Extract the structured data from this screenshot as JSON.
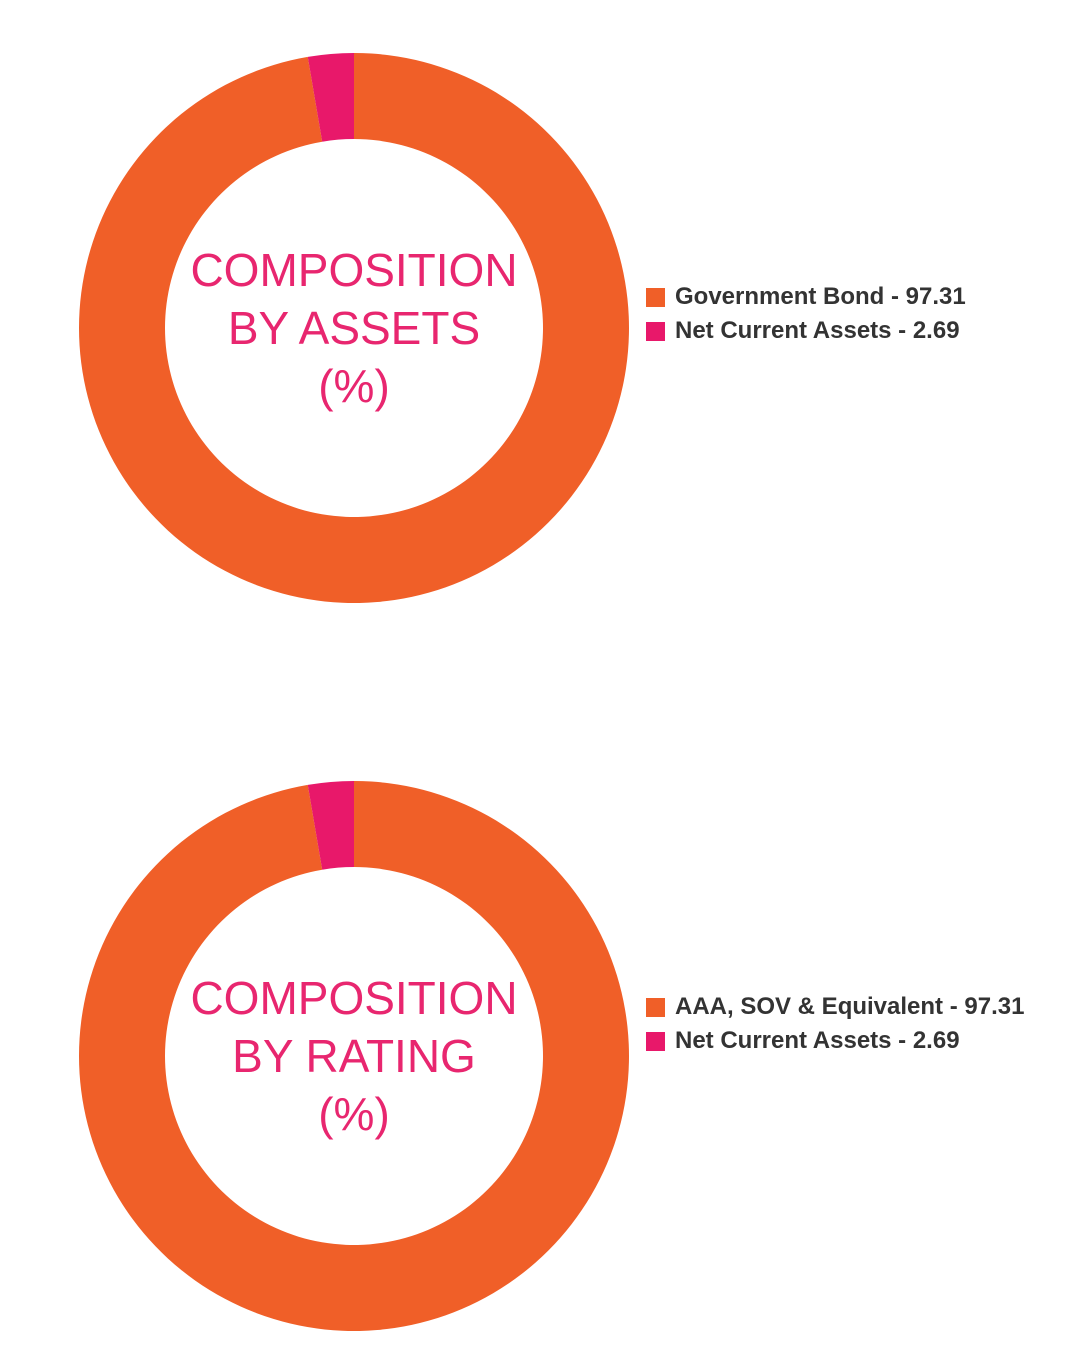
{
  "colors": {
    "orange": "#f05f28",
    "pink": "#e8186a",
    "title": "#e8266f",
    "legend_text": "#333333"
  },
  "chart_data": [
    {
      "type": "pie",
      "title_lines": [
        "COMPOSITION",
        "BY ASSETS",
        "(%)"
      ],
      "series": [
        {
          "name": "Government Bond - 97.31",
          "value": 97.31,
          "color": "#f05f28"
        },
        {
          "name": "Net Current Assets - 2.69",
          "value": 2.69,
          "color": "#e8186a"
        }
      ],
      "legend_position": "right"
    },
    {
      "type": "pie",
      "title_lines": [
        "COMPOSITION",
        "BY RATING",
        "(%)"
      ],
      "series": [
        {
          "name": "AAA, SOV & Equivalent - 97.31",
          "value": 97.31,
          "color": "#f05f28"
        },
        {
          "name": "Net Current Assets - 2.69",
          "value": 2.69,
          "color": "#e8186a"
        }
      ],
      "legend_position": "right"
    }
  ]
}
